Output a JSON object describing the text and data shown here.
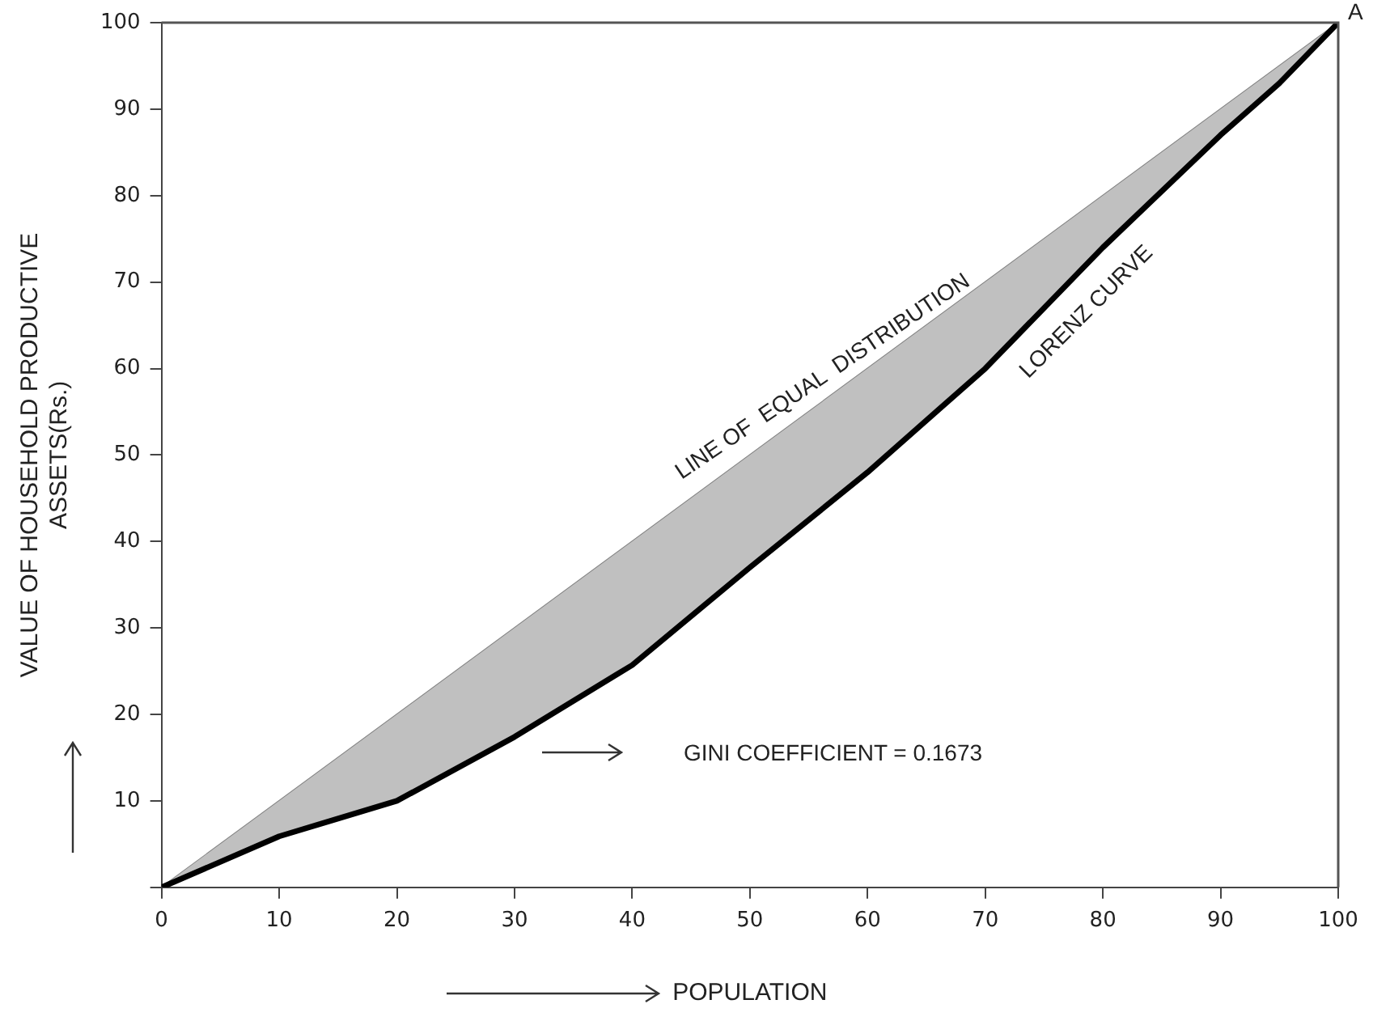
{
  "chart_data": {
    "type": "line",
    "xlabel": "POPULATION",
    "ylabel": "VALUE OF HOUSEHOLD PRODUCTIVE\nASSETS(Rs.)",
    "x": [
      0,
      10,
      20,
      30,
      40,
      50,
      60,
      70,
      80,
      90,
      95,
      100
    ],
    "series": [
      {
        "color": "#808080",
        "x": [
          0,
          100
        ],
        "values": [
          0,
          100
        ]
      },
      {
        "color": "#000000",
        "values": [
          0,
          5.9,
          10,
          17.4,
          25.7,
          37,
          48,
          60,
          74,
          87,
          93,
          100
        ]
      }
    ],
    "xlim": [
      0,
      100
    ],
    "xticks": [
      0,
      10,
      20,
      30,
      40,
      50,
      60,
      70,
      80,
      90,
      100
    ],
    "ylim": [
      0,
      100
    ],
    "yticks": [
      {
        "value": 0,
        "label": null
      },
      10,
      20,
      30,
      40,
      50,
      60,
      70,
      80,
      90,
      100
    ],
    "grid": false,
    "legend": false,
    "marker": "none",
    "line_style": "solid",
    "annotations": [
      "LINE OF  EQUAL  DISTRIBUTION",
      "LORENZ CURVE",
      "GINI COEFFICIENT = 0.1673",
      {
        "text": "A",
        "x": 100,
        "y": 100
      }
    ]
  }
}
